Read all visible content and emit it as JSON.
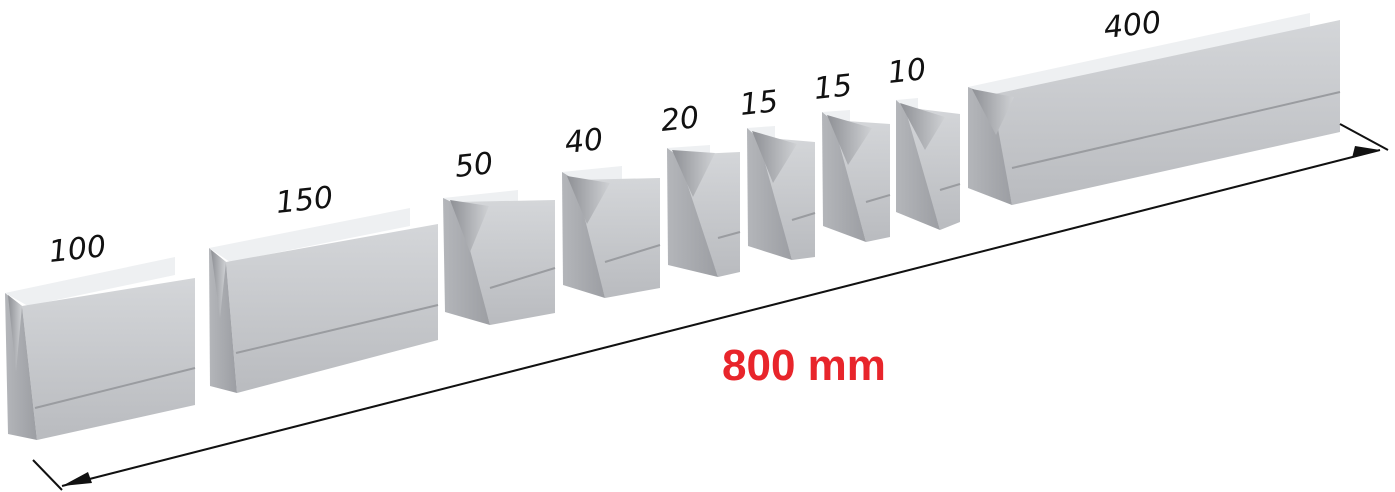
{
  "segments": [
    {
      "label": "100",
      "length_mm": 100
    },
    {
      "label": "150",
      "length_mm": 150
    },
    {
      "label": "50",
      "length_mm": 50
    },
    {
      "label": "40",
      "length_mm": 40
    },
    {
      "label": "20",
      "length_mm": 20
    },
    {
      "label": "15",
      "length_mm": 15
    },
    {
      "label": "15",
      "length_mm": 15
    },
    {
      "label": "10",
      "length_mm": 10
    },
    {
      "label": "400",
      "length_mm": 400
    }
  ],
  "total": {
    "label": "800 mm",
    "value_mm": 800
  },
  "colors": {
    "total_label": "#e8252b",
    "block_front": "#c7c8cb",
    "block_top": "#eceef0",
    "block_side": "#a9abaf"
  }
}
